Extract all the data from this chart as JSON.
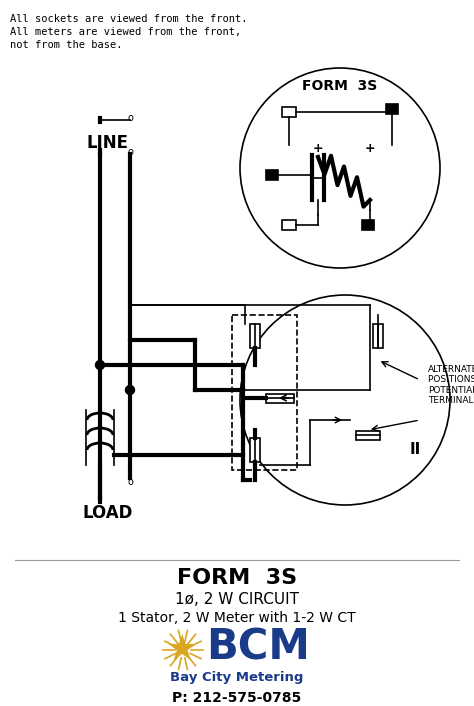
{
  "bg_color": "#ffffff",
  "title_form": "FORM  3S",
  "subtitle1": "1ø, 2 W CIRCUIT",
  "subtitle2": "1 Stator, 2 W Meter with 1-2 W CT",
  "bcm_text": "BCM",
  "bcm_sub": "Bay City Metering",
  "bcm_phone": "P: 212-575-0785",
  "header_text": "All sockets are viewed from the front.\nAll meters are viewed from the front,\nnot from the base.",
  "line_label": "LINE",
  "load_label": "LOAD",
  "form_label": "FORM  3S",
  "alt_label": "ALTERNATE\nPOSITIONS OF\nPOTENTIAL\nTERMINAL JAWS",
  "bcm_color": "#1a3a8a",
  "star_color": "#DAA520"
}
